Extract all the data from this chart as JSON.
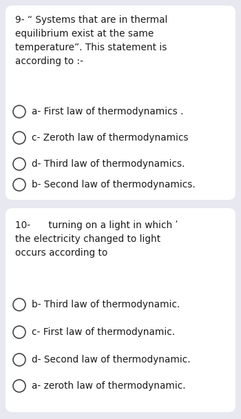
{
  "bg_color": "#e8e8f0",
  "card_color": "#ffffff",
  "text_color": "#1a1a1a",
  "q1_text": "9- “ Systems that are in thermal\nequilibrium exist at the same\ntemperature”. This statement is\naccording to :-",
  "q1_options": [
    "a- First law of thermodynamics .",
    "c- Zeroth law of thermodynamics",
    "d- Third law of thermodynamics.",
    "b- Second law of thermodynamics."
  ],
  "q2_text": "10-      turning on a light in which ʹ\nthe electricity changed to light\noccurs according to",
  "q2_options": [
    "b- Third law of thermodynamic.",
    "c- First law of thermodynamic.",
    "d- Second law of thermodynamic.",
    "a- zeroth law of thermodynamic."
  ],
  "font_size_question": 9.8,
  "font_size_option": 9.8,
  "circle_edge_color": "#444444",
  "circle_face_color": "#ffffff",
  "circle_lw": 1.2
}
